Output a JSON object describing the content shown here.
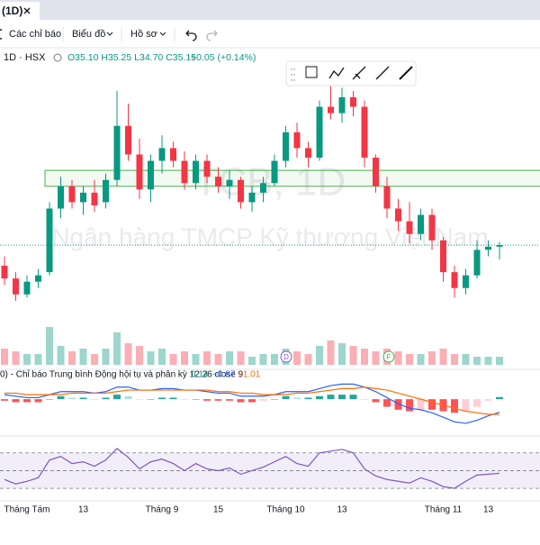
{
  "tab": {
    "title": "(1D)"
  },
  "toolbar": {
    "indicators": "Các chỉ báo",
    "chart": "Biểu đồ",
    "profile": "Hồ sơ"
  },
  "chart_data": {
    "type": "candlestick",
    "symbol": "1D · HSX",
    "ohlc_text": "O35.10 H35.25 L34.70 C35.15",
    "change_text": "+0.05 (+0.14%)",
    "watermark_symbol": "TCB, 1D",
    "watermark_name": "Ngân hàng TMCP Kỹ thương Việt Nam",
    "categories": [
      null,
      null,
      "Tháng Tám",
      null,
      null,
      null,
      null,
      "13",
      null,
      null,
      null,
      null,
      null,
      null,
      "Tháng 9",
      null,
      null,
      null,
      null,
      "15",
      null,
      null,
      null,
      null,
      null,
      "Tháng 10",
      null,
      null,
      null,
      null,
      "13",
      null,
      null,
      null,
      null,
      null,
      null,
      null,
      null,
      "Tháng 11",
      null,
      null,
      null,
      "13",
      null
    ],
    "ohlc": [
      [
        34.5,
        34.8,
        33.9,
        34.1
      ],
      [
        34.1,
        34.3,
        33.4,
        33.6
      ],
      [
        33.6,
        34.2,
        33.5,
        34.0
      ],
      [
        34.0,
        34.4,
        33.8,
        34.2
      ],
      [
        34.3,
        36.5,
        34.2,
        36.3
      ],
      [
        36.3,
        37.3,
        36.0,
        37.0
      ],
      [
        37.0,
        37.2,
        36.3,
        36.5
      ],
      [
        36.5,
        37.0,
        36.1,
        36.8
      ],
      [
        36.8,
        37.2,
        36.2,
        36.4
      ],
      [
        36.5,
        37.4,
        36.3,
        37.2
      ],
      [
        37.2,
        40.0,
        37.0,
        38.9
      ],
      [
        38.9,
        39.6,
        37.8,
        38.0
      ],
      [
        38.0,
        38.5,
        36.6,
        36.9
      ],
      [
        36.9,
        38.0,
        36.5,
        37.8
      ],
      [
        37.8,
        38.6,
        37.4,
        38.2
      ],
      [
        38.2,
        38.4,
        37.6,
        37.8
      ],
      [
        37.8,
        38.1,
        36.9,
        37.1
      ],
      [
        37.1,
        38.0,
        36.9,
        37.8
      ],
      [
        37.8,
        38.0,
        37.1,
        37.3
      ],
      [
        37.3,
        37.6,
        36.8,
        37.0
      ],
      [
        37.0,
        37.5,
        36.6,
        37.2
      ],
      [
        37.2,
        37.3,
        36.3,
        36.5
      ],
      [
        36.5,
        37.0,
        36.2,
        36.8
      ],
      [
        36.8,
        37.3,
        36.5,
        37.1
      ],
      [
        37.1,
        38.0,
        37.0,
        37.8
      ],
      [
        37.8,
        38.9,
        37.6,
        38.7
      ],
      [
        38.7,
        39.0,
        37.9,
        38.2
      ],
      [
        38.2,
        38.4,
        37.6,
        37.9
      ],
      [
        37.9,
        39.7,
        37.8,
        39.5
      ],
      [
        39.5,
        40.3,
        39.1,
        39.3
      ],
      [
        39.3,
        40.1,
        39.0,
        39.8
      ],
      [
        39.8,
        40.0,
        39.2,
        39.5
      ],
      [
        39.5,
        39.7,
        37.6,
        37.9
      ],
      [
        37.9,
        38.0,
        36.8,
        37.0
      ],
      [
        37.0,
        37.3,
        36.0,
        36.3
      ],
      [
        36.3,
        36.6,
        35.6,
        35.9
      ],
      [
        35.9,
        36.5,
        35.2,
        35.5
      ],
      [
        35.5,
        36.3,
        35.3,
        36.1
      ],
      [
        36.1,
        36.3,
        35.0,
        35.3
      ],
      [
        35.3,
        35.4,
        34.0,
        34.3
      ],
      [
        34.3,
        34.5,
        33.5,
        33.8
      ],
      [
        33.8,
        34.4,
        33.6,
        34.2
      ],
      [
        34.2,
        35.3,
        34.1,
        35.0
      ],
      [
        35.0,
        35.3,
        34.8,
        35.1
      ],
      [
        35.1,
        35.25,
        34.7,
        35.15
      ]
    ],
    "volume": [
      6,
      5,
      4,
      4,
      14,
      7,
      5,
      6,
      4,
      6,
      12,
      8,
      7,
      5,
      6,
      4,
      5,
      4,
      5,
      4,
      5,
      5,
      3,
      4,
      4,
      6,
      5,
      4,
      7,
      9,
      8,
      7,
      6,
      5,
      6,
      5,
      4,
      4,
      5,
      6,
      4,
      4,
      3,
      3,
      3
    ],
    "ylim": [
      31.3,
      41.3
    ],
    "volume_lim": [
      0,
      20
    ],
    "zone": [
      37.0,
      37.5
    ],
    "up_color": "#089981",
    "down_color": "#f23645",
    "event_labels": [
      "D",
      "F"
    ],
    "macd": {
      "title": "0) - Chỉ báo Trung bình Động hội tụ và phân kỳ 12 26 close 9",
      "legend_values": [
        "0.14",
        "−0.87",
        "−1.01"
      ],
      "lim": [
        -2.2,
        1.5
      ],
      "histogram": [
        -0.1,
        -0.2,
        -0.2,
        -0.2,
        0,
        0.2,
        0.1,
        0.1,
        0,
        0.1,
        0.3,
        0.2,
        0,
        0,
        0.1,
        0.1,
        0,
        0,
        -0.1,
        -0.1,
        -0.1,
        -0.2,
        -0.2,
        -0.1,
        0,
        0.2,
        0.1,
        0.1,
        0.2,
        0.3,
        0.3,
        0.3,
        0,
        -0.2,
        -0.5,
        -0.7,
        -0.8,
        -0.7,
        -0.7,
        -0.8,
        -0.9,
        -0.8,
        -0.5,
        -0.1,
        0.14
      ],
      "macd": [
        0.3,
        0.2,
        0.1,
        0.1,
        0.3,
        0.5,
        0.5,
        0.5,
        0.4,
        0.5,
        0.8,
        0.8,
        0.6,
        0.6,
        0.7,
        0.7,
        0.6,
        0.6,
        0.5,
        0.4,
        0.4,
        0.2,
        0.2,
        0.2,
        0.3,
        0.5,
        0.5,
        0.5,
        0.7,
        0.9,
        1.0,
        1.0,
        0.8,
        0.5,
        0.1,
        -0.3,
        -0.6,
        -0.7,
        -0.9,
        -1.2,
        -1.5,
        -1.6,
        -1.4,
        -1.1,
        -0.87
      ],
      "signal": [
        0.4,
        0.4,
        0.3,
        0.3,
        0.3,
        0.3,
        0.4,
        0.4,
        0.4,
        0.4,
        0.5,
        0.6,
        0.6,
        0.6,
        0.6,
        0.6,
        0.6,
        0.6,
        0.6,
        0.5,
        0.5,
        0.4,
        0.4,
        0.3,
        0.3,
        0.3,
        0.4,
        0.4,
        0.5,
        0.6,
        0.7,
        0.7,
        0.8,
        0.7,
        0.6,
        0.4,
        0.2,
        0.0,
        -0.2,
        -0.4,
        -0.6,
        -0.8,
        -0.9,
        -1.0,
        -1.01
      ],
      "macd_color": "#2962ff",
      "signal_color": "#ff6d00"
    },
    "rsi": {
      "lim": [
        20,
        85
      ],
      "band": [
        30,
        70
      ],
      "levels": [
        70,
        50,
        30
      ],
      "values": [
        40,
        35,
        38,
        42,
        62,
        66,
        58,
        60,
        55,
        62,
        75,
        65,
        52,
        60,
        63,
        58,
        50,
        58,
        52,
        50,
        53,
        46,
        50,
        54,
        60,
        66,
        58,
        55,
        70,
        72,
        74,
        70,
        52,
        44,
        40,
        38,
        36,
        42,
        38,
        32,
        30,
        38,
        45,
        46,
        47
      ],
      "color": "#7e57c2"
    }
  }
}
